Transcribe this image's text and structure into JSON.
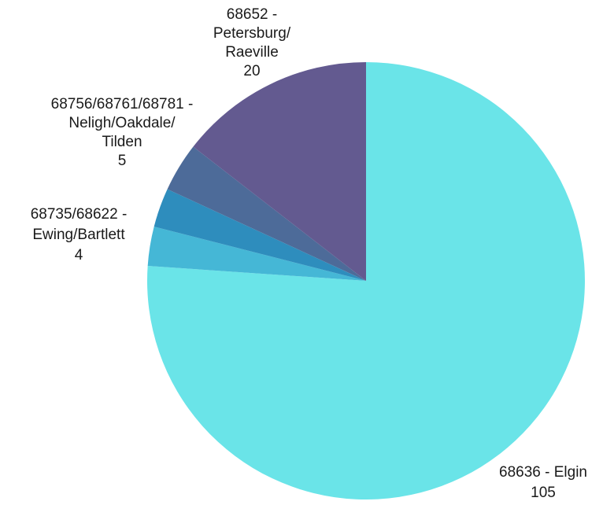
{
  "chart_data": {
    "type": "pie",
    "title": "",
    "categories": [
      "68636 - Elgin",
      "68735/68622 - Ewing/Bartlett",
      "(unlabeled slice)",
      "68756/68761/68781 - Neligh/Oakdale/ Tilden",
      "68652 - Petersburg/ Raeville"
    ],
    "values": [
      105,
      4,
      4,
      5,
      20
    ],
    "colors": [
      "#6ae4e8",
      "#45b7d6",
      "#2e8dbd",
      "#4d6b99",
      "#635a90"
    ],
    "labels": [
      {
        "lines": [
          "68636 - Elgin"
        ],
        "value": "105"
      },
      {
        "lines": [
          "68735/68622 -",
          "Ewing/Bartlett"
        ],
        "value": "4"
      },
      null,
      {
        "lines": [
          "68756/68761/68781 -",
          "Neligh/Oakdale/",
          "Tilden"
        ],
        "value": "5"
      },
      {
        "lines": [
          "68652 -",
          "Petersburg/",
          "Raeville"
        ],
        "value": "20"
      }
    ],
    "start_angle_deg": 0,
    "direction": "clockwise",
    "legend": "none"
  }
}
